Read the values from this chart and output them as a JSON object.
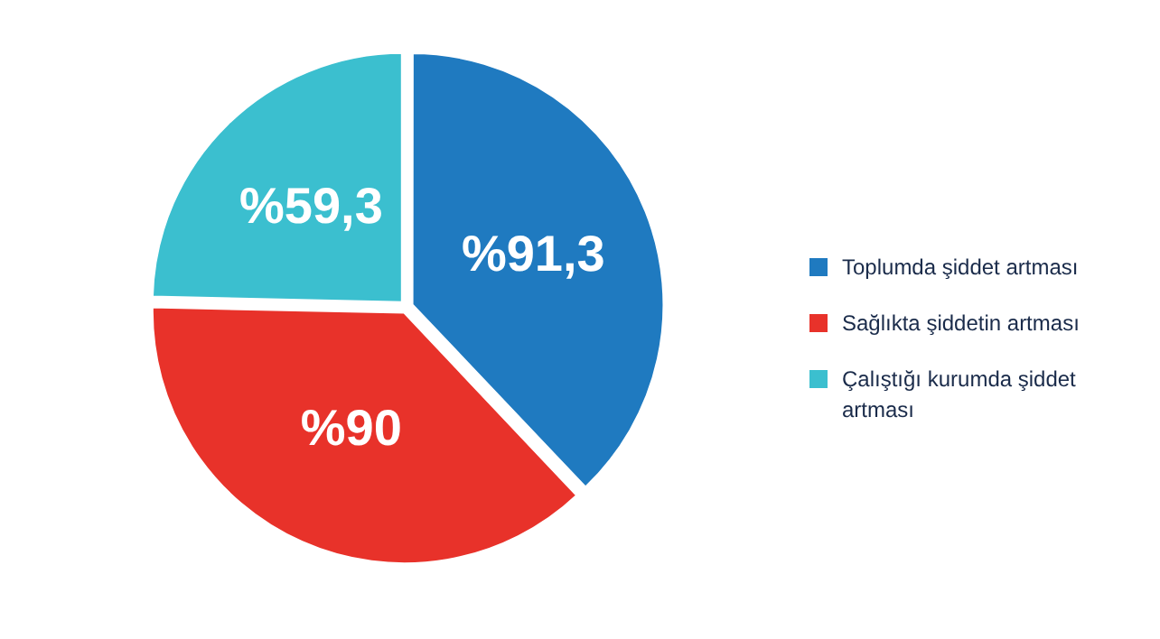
{
  "chart_data": {
    "type": "pie",
    "categories": [
      "Toplumda şiddet artması",
      "Sağlıkta şiddetin artması",
      "Çalıştığı kurumda şiddet artması"
    ],
    "values": [
      91.3,
      90,
      59.3
    ],
    "colors": [
      "#1f7ac0",
      "#e8322a",
      "#3bbfcf"
    ],
    "value_labels": [
      "%91,3",
      "%90",
      "%59,3"
    ],
    "legend": "right"
  }
}
